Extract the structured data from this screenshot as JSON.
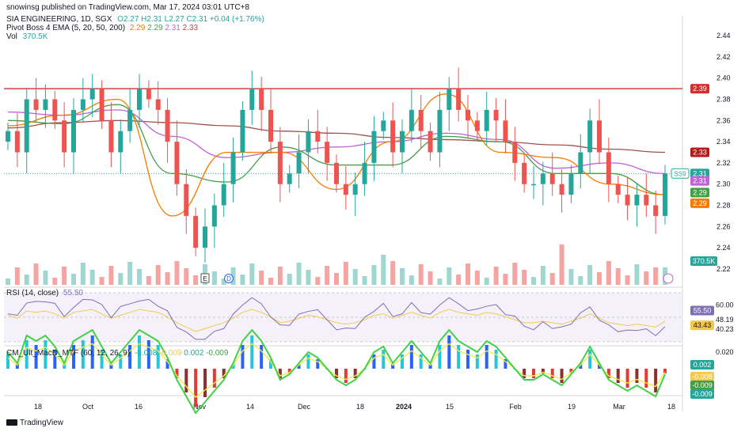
{
  "header": {
    "published": "snowinsg published on TradingView.com, Mar 17, 2024 03:01 UTC+8",
    "symbol": "SIA ENGINEERING, 1D, SGX",
    "ohlc": "O2.27 H2.31 L2.27 C2.31 +0.04 (+1.76%)",
    "ema_label": "Pivot Boss 4 EMA (5, 20, 50, 200)",
    "ema_values": [
      "2.29",
      "2.29",
      "2.31",
      "2.33"
    ],
    "vol_label": "Vol",
    "vol_value": "370.5K",
    "rsi_label": "RSI (14, close)",
    "rsi_value": "55.50",
    "macd_label": "CM_Ult_MacD_MTF (60, 12, 26, 9)",
    "macd_values": [
      "-0.008",
      "-0.009",
      "0.002",
      "-0.009"
    ]
  },
  "footer": {
    "brand": "TradingView"
  },
  "colors": {
    "up": "#26a69a",
    "down": "#ef5350",
    "vol_up": "#9fd6cf",
    "vol_down": "#f5a4a2",
    "ema5": "#f57c00",
    "ema20": "#43a047",
    "ema50": "#c162d6",
    "ema200": "#a1504b",
    "resistance": "#d32f2f",
    "rsi": "#7e6fb3",
    "rsi_ma": "#f2c94c"
  },
  "chart_data": [
    {
      "type": "candlestick",
      "title": "SIA ENGINEERING, 1D, SGX",
      "x_ticks": [
        "18",
        "Oct",
        "16",
        "Nov",
        "14",
        "Dec",
        "18",
        "2024",
        "15",
        "Feb",
        "19",
        "Mar",
        "18"
      ],
      "y_ticks": [
        "2.44",
        "2.42",
        "2.40",
        "2.38",
        "2.36",
        "2.34",
        "2.32",
        "2.30",
        "2.28",
        "2.26",
        "2.24",
        "2.22"
      ],
      "ylim": [
        2.205,
        2.455
      ],
      "resistance_level": 2.39,
      "series_keypoints": {
        "close": [
          2.35,
          2.33,
          2.38,
          2.37,
          2.38,
          2.36,
          2.33,
          2.37,
          2.38,
          2.39,
          2.36,
          2.33,
          2.35,
          2.37,
          2.39,
          2.38,
          2.37,
          2.34,
          2.3,
          2.27,
          2.24,
          2.26,
          2.28,
          2.3,
          2.33,
          2.37,
          2.39,
          2.37,
          2.34,
          2.3,
          2.31,
          2.33,
          2.35,
          2.34,
          2.32,
          2.3,
          2.29,
          2.3,
          2.32,
          2.35,
          2.36,
          2.33,
          2.35,
          2.37,
          2.35,
          2.33,
          2.37,
          2.39,
          2.37,
          2.36,
          2.35,
          2.37,
          2.36,
          2.34,
          2.32,
          2.3,
          2.3,
          2.31,
          2.3,
          2.29,
          2.31,
          2.33,
          2.36,
          2.33,
          2.3,
          2.29,
          2.28,
          2.29,
          2.28,
          2.27,
          2.31
        ],
        "ema200": [
          2.353,
          2.358,
          2.36,
          2.358,
          2.355,
          2.35,
          2.348,
          2.344,
          2.342,
          2.34,
          2.337,
          2.333,
          2.33
        ],
        "ema50": [
          2.368,
          2.365,
          2.37,
          2.345,
          2.325,
          2.33,
          2.335,
          2.34,
          2.348,
          2.342,
          2.315,
          2.32,
          2.31
        ],
        "ema20": [
          2.36,
          2.357,
          2.375,
          2.31,
          2.302,
          2.335,
          2.318,
          2.318,
          2.345,
          2.34,
          2.31,
          2.31,
          2.29
        ],
        "ema5": [
          2.355,
          2.365,
          2.38,
          2.27,
          2.33,
          2.33,
          2.295,
          2.34,
          2.385,
          2.33,
          2.325,
          2.3,
          2.29
        ]
      },
      "last_labels": [
        "SS9",
        "2.31",
        "2.31",
        "2.29",
        "2.29",
        "2.33",
        "2.39"
      ]
    },
    {
      "type": "line",
      "title": "RSI (14, close)",
      "y_ticks": [
        "60.00",
        "48.19",
        "40.23"
      ],
      "labels_right": [
        "55.50",
        "43.43"
      ],
      "ylim": [
        30,
        70
      ]
    },
    {
      "type": "histogram",
      "title": "CM_Ult_MacD_MTF (60, 12, 26, 9)",
      "y_ticks": [
        "0.020"
      ],
      "labels_right": [
        "0.002",
        "-0.008",
        "-0.009",
        "-0.009"
      ]
    }
  ],
  "markers": {
    "earnings": "E",
    "dividend": "D"
  }
}
